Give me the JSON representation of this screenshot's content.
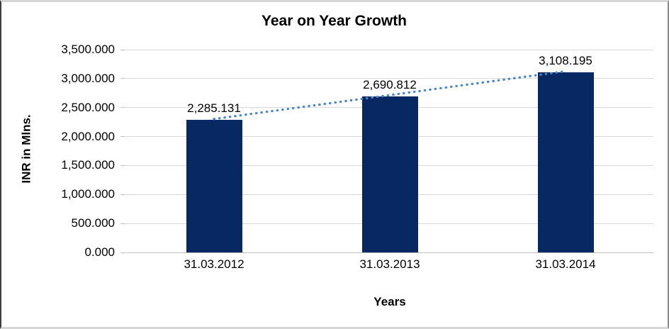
{
  "chart_data": {
    "type": "bar",
    "title": "Year on Year Growth",
    "xlabel": "Years",
    "ylabel": "INR in Mlns.",
    "categories": [
      "31.03.2012",
      "31.03.2013",
      "31.03.2014"
    ],
    "values": [
      2285.131,
      2690.812,
      3108.195
    ],
    "data_labels": [
      "2,285.131",
      "2,690.812",
      "3,108.195"
    ],
    "ylim": [
      0,
      3500
    ],
    "y_tick_values": [
      0,
      500,
      1000,
      1500,
      2000,
      2500,
      3000,
      3500
    ],
    "y_tick_labels": [
      "0.000",
      "500.000",
      "1,000.000",
      "1,500.000",
      "2,000.000",
      "2,500.000",
      "3,000.000",
      "3,500.000"
    ],
    "grid": true,
    "legend": "none",
    "bar_color": "#082863",
    "gridline_color": "#d9d9d9",
    "axis_line_color": "#bfbfbf",
    "trendline": {
      "type": "linear",
      "style": "dotted",
      "color": "#4e86c8"
    }
  }
}
